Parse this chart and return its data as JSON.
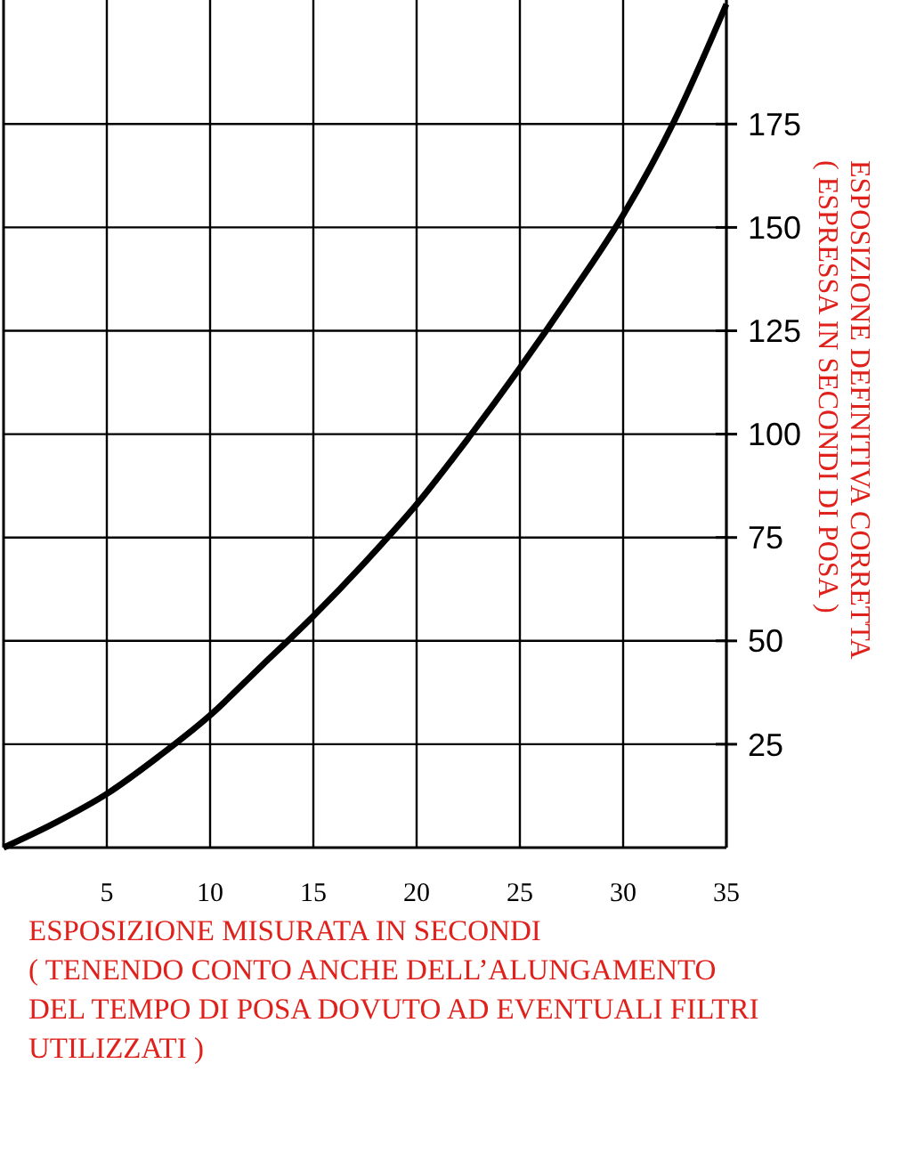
{
  "chart_data": {
    "type": "line",
    "xlabel": "ESPOSIZIONE MISURATA IN SECONDI\n( TENENDO CONTO ANCHE DELL’ALUNGAMENTO\nDEL TEMPO DI POSA DOVUTO AD EVENTUALI FILTRI\nUTILIZZATI )",
    "ylabel": "ESPOSIZIONE DEFINITIVA CORRETTA\n( ESPRESSA IN SECONDI DI POSA )",
    "x": [
      0,
      2.5,
      5,
      7.5,
      10,
      12.5,
      15,
      17.5,
      20,
      22.5,
      25,
      27.5,
      30,
      32.5,
      35
    ],
    "series": [
      {
        "color": "#000000",
        "values": [
          0,
          6,
          13,
          22,
          32,
          44,
          56,
          69,
          83,
          99,
          116,
          134,
          153,
          176,
          204
        ]
      }
    ],
    "xlim": [
      0,
      35
    ],
    "xticks": [
      5,
      10,
      15,
      20,
      25,
      30,
      35
    ],
    "ylim": [
      0,
      205
    ],
    "yticks": [
      25,
      50,
      75,
      100,
      125,
      150,
      175
    ],
    "grid": true,
    "marker": "none",
    "line_style": "solid"
  }
}
